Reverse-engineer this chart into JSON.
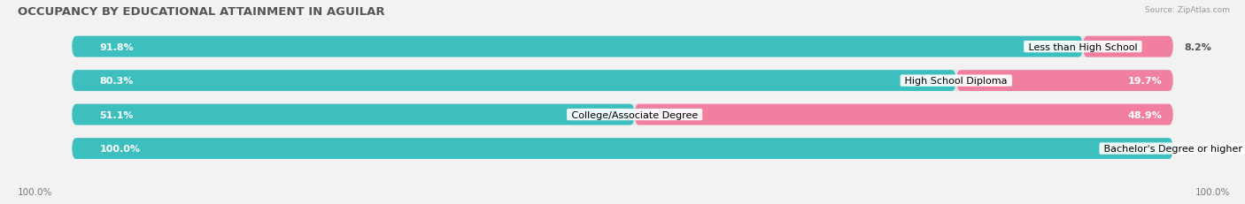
{
  "title": "OCCUPANCY BY EDUCATIONAL ATTAINMENT IN AGUILAR",
  "source": "Source: ZipAtlas.com",
  "categories": [
    "Less than High School",
    "High School Diploma",
    "College/Associate Degree",
    "Bachelor's Degree or higher"
  ],
  "owner_values": [
    91.8,
    80.3,
    51.1,
    100.0
  ],
  "renter_values": [
    8.2,
    19.7,
    48.9,
    0.0
  ],
  "owner_color": "#3dbfbf",
  "renter_color": "#f07fa0",
  "background_color": "#f2f2f2",
  "bar_bg_color": "#e4e4e4",
  "title_fontsize": 9.5,
  "bar_label_fontsize": 8,
  "cat_label_fontsize": 8,
  "legend_fontsize": 8,
  "axis_label_fontsize": 7.5,
  "x_left_label": "100.0%",
  "x_right_label": "100.0%"
}
